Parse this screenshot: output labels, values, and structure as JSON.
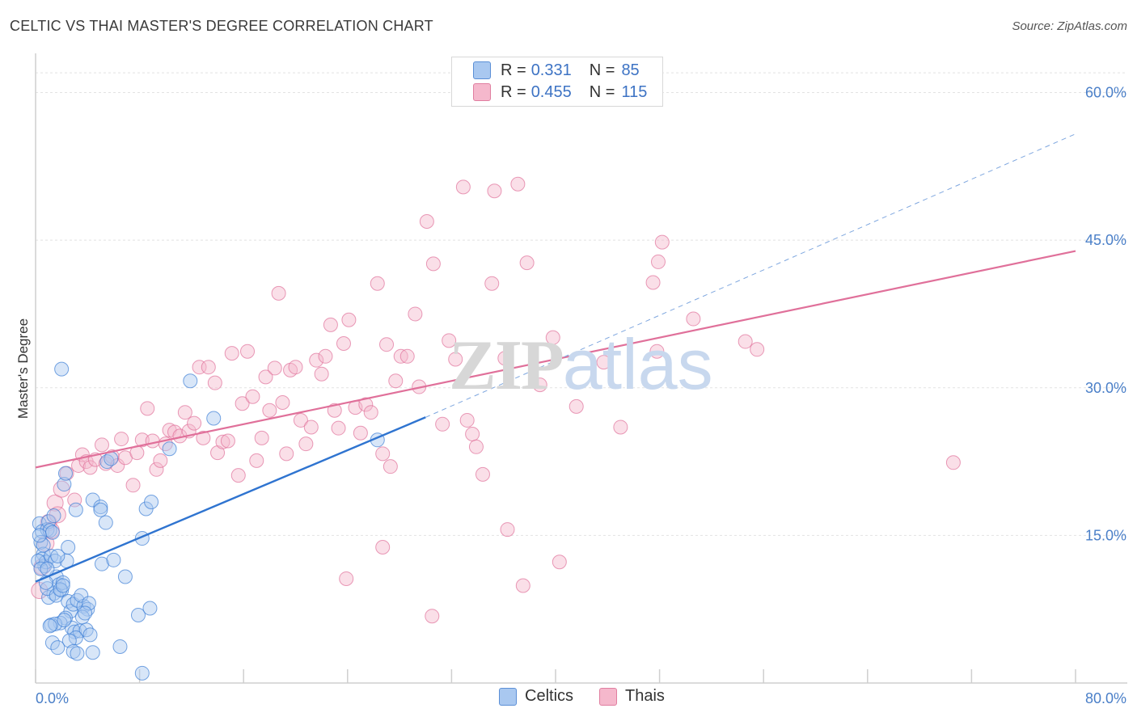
{
  "title": "CELTIC VS THAI MASTER'S DEGREE CORRELATION CHART",
  "source": "Source: ZipAtlas.com",
  "watermark": {
    "part1": "ZIP",
    "part2": "atlas"
  },
  "legend_top": {
    "rows": [
      {
        "r_label": "R =",
        "r_value": "0.331",
        "n_label": "N =",
        "n_value": "85",
        "color": "#a9c8f0"
      },
      {
        "r_label": "R =",
        "r_value": "0.455",
        "n_label": "N =",
        "n_value": "115",
        "color": "#f5b8cc"
      }
    ]
  },
  "legend_bottom": [
    {
      "label": "Celtics",
      "color": "#a9c8f0"
    },
    {
      "label": "Thais",
      "color": "#f5b8cc"
    }
  ],
  "chart_data": {
    "type": "scatter",
    "title": "CELTIC VS THAI MASTER'S DEGREE CORRELATION CHART",
    "xlabel": "",
    "ylabel": "Master's Degree",
    "xlim": [
      0,
      80
    ],
    "ylim": [
      0,
      63
    ],
    "x_tick_labels": [
      "0.0%",
      "80.0%"
    ],
    "y_ticks": [
      15,
      30,
      45,
      60
    ],
    "y_tick_labels": [
      "15.0%",
      "30.0%",
      "45.0%",
      "60.0%"
    ],
    "grid": true,
    "legend": "top-center",
    "series": [
      {
        "name": "Celtics",
        "color": "#3d7fd6",
        "fill": "#a9c8f0",
        "r": 0.331,
        "n": 85,
        "trend": {
          "x": [
            0,
            30
          ],
          "y": [
            10.3,
            27.0
          ],
          "dashed_extension": {
            "x": [
              30,
              80
            ],
            "y": [
              27.0,
              55.8
            ]
          }
        },
        "points": [
          [
            0.3,
            16.2
          ],
          [
            0.5,
            15.4
          ],
          [
            0.4,
            14.3
          ],
          [
            0.6,
            13.1
          ],
          [
            0.5,
            12.6
          ],
          [
            0.7,
            11.9
          ],
          [
            0.8,
            12.3
          ],
          [
            0.9,
            15.6
          ],
          [
            1.0,
            16.4
          ],
          [
            1.1,
            15.5
          ],
          [
            1.3,
            15.3
          ],
          [
            1.2,
            12.9
          ],
          [
            1.5,
            12.4
          ],
          [
            1.6,
            10.8
          ],
          [
            1.8,
            10.0
          ],
          [
            2.0,
            9.4
          ],
          [
            2.1,
            10.2
          ],
          [
            1.4,
            9.1
          ],
          [
            1.0,
            8.7
          ],
          [
            0.9,
            9.6
          ],
          [
            1.6,
            8.9
          ],
          [
            2.5,
            8.3
          ],
          [
            2.7,
            7.3
          ],
          [
            2.9,
            8.0
          ],
          [
            3.2,
            8.4
          ],
          [
            3.7,
            7.8
          ],
          [
            4.0,
            7.5
          ],
          [
            2.3,
            6.6
          ],
          [
            1.9,
            6.1
          ],
          [
            1.2,
            5.9
          ],
          [
            1.5,
            6.0
          ],
          [
            2.8,
            5.6
          ],
          [
            3.0,
            5.2
          ],
          [
            3.4,
            5.3
          ],
          [
            3.9,
            5.4
          ],
          [
            4.2,
            4.9
          ],
          [
            3.1,
            4.6
          ],
          [
            2.6,
            4.3
          ],
          [
            1.3,
            4.1
          ],
          [
            1.7,
            3.6
          ],
          [
            2.9,
            3.2
          ],
          [
            3.2,
            3.0
          ],
          [
            4.4,
            3.1
          ],
          [
            6.5,
            3.7
          ],
          [
            8.2,
            1.0
          ],
          [
            1.4,
            17.0
          ],
          [
            2.2,
            20.2
          ],
          [
            2.3,
            21.3
          ],
          [
            3.1,
            17.6
          ],
          [
            4.4,
            18.6
          ],
          [
            5.0,
            17.9
          ],
          [
            5.4,
            16.3
          ],
          [
            5.0,
            17.6
          ],
          [
            5.5,
            22.5
          ],
          [
            5.8,
            22.8
          ],
          [
            5.1,
            12.1
          ],
          [
            6.0,
            12.5
          ],
          [
            6.9,
            10.8
          ],
          [
            7.9,
            6.9
          ],
          [
            8.2,
            14.7
          ],
          [
            8.5,
            17.7
          ],
          [
            8.9,
            18.4
          ],
          [
            8.8,
            7.6
          ],
          [
            10.3,
            23.8
          ],
          [
            11.9,
            30.7
          ],
          [
            13.7,
            26.9
          ],
          [
            26.3,
            24.7
          ],
          [
            2.0,
            31.9
          ],
          [
            0.2,
            12.4
          ],
          [
            0.4,
            11.6
          ],
          [
            2.4,
            12.4
          ],
          [
            2.5,
            13.8
          ],
          [
            0.8,
            10.2
          ],
          [
            1.9,
            9.5
          ],
          [
            3.5,
            8.9
          ],
          [
            4.1,
            8.1
          ],
          [
            2.2,
            6.4
          ],
          [
            1.1,
            5.8
          ],
          [
            3.6,
            6.7
          ],
          [
            0.6,
            14.0
          ],
          [
            0.3,
            15.0
          ],
          [
            1.7,
            12.9
          ],
          [
            2.1,
            9.9
          ],
          [
            3.8,
            7.1
          ],
          [
            0.9,
            11.6
          ]
        ]
      },
      {
        "name": "Thais",
        "color": "#e0709a",
        "fill": "#f5b8cc",
        "r": 0.455,
        "n": 115,
        "trend": {
          "x": [
            0,
            80
          ],
          "y": [
            21.9,
            43.9
          ]
        },
        "points": [
          [
            0.3,
            9.4
          ],
          [
            0.5,
            11.8
          ],
          [
            0.8,
            14.2
          ],
          [
            1.0,
            16.3
          ],
          [
            1.2,
            15.5
          ],
          [
            1.5,
            18.3
          ],
          [
            1.7,
            17.1
          ],
          [
            2.0,
            19.7
          ],
          [
            2.4,
            21.3
          ],
          [
            3.0,
            18.6
          ],
          [
            3.3,
            22.1
          ],
          [
            3.6,
            23.2
          ],
          [
            3.9,
            22.5
          ],
          [
            4.2,
            21.9
          ],
          [
            4.6,
            22.7
          ],
          [
            5.1,
            24.2
          ],
          [
            5.4,
            22.3
          ],
          [
            5.9,
            23.0
          ],
          [
            6.3,
            22.1
          ],
          [
            6.6,
            24.8
          ],
          [
            6.9,
            22.9
          ],
          [
            7.5,
            20.1
          ],
          [
            7.8,
            23.4
          ],
          [
            8.2,
            24.7
          ],
          [
            8.6,
            27.9
          ],
          [
            9.0,
            24.6
          ],
          [
            9.3,
            21.7
          ],
          [
            9.6,
            22.6
          ],
          [
            10.0,
            24.3
          ],
          [
            10.3,
            25.7
          ],
          [
            10.7,
            25.5
          ],
          [
            11.1,
            25.1
          ],
          [
            11.5,
            27.5
          ],
          [
            11.8,
            25.6
          ],
          [
            12.2,
            26.4
          ],
          [
            12.6,
            32.1
          ],
          [
            12.9,
            24.9
          ],
          [
            13.3,
            32.1
          ],
          [
            13.8,
            30.5
          ],
          [
            14.0,
            23.4
          ],
          [
            14.4,
            24.5
          ],
          [
            14.8,
            24.6
          ],
          [
            15.1,
            33.5
          ],
          [
            15.6,
            21.1
          ],
          [
            15.9,
            28.4
          ],
          [
            16.3,
            33.7
          ],
          [
            16.7,
            29.1
          ],
          [
            17.0,
            22.6
          ],
          [
            17.4,
            24.9
          ],
          [
            17.7,
            31.1
          ],
          [
            18.0,
            27.7
          ],
          [
            18.4,
            32.0
          ],
          [
            18.7,
            39.6
          ],
          [
            19.0,
            28.5
          ],
          [
            19.3,
            23.3
          ],
          [
            19.6,
            31.8
          ],
          [
            20.0,
            32.1
          ],
          [
            20.4,
            26.7
          ],
          [
            20.8,
            24.3
          ],
          [
            21.2,
            26.0
          ],
          [
            21.6,
            32.8
          ],
          [
            22.0,
            31.4
          ],
          [
            22.3,
            33.2
          ],
          [
            22.7,
            36.4
          ],
          [
            23.0,
            27.7
          ],
          [
            23.3,
            25.9
          ],
          [
            23.7,
            34.5
          ],
          [
            24.1,
            36.9
          ],
          [
            24.6,
            28.0
          ],
          [
            25.0,
            25.4
          ],
          [
            25.4,
            28.3
          ],
          [
            25.8,
            27.5
          ],
          [
            26.3,
            40.6
          ],
          [
            26.7,
            23.3
          ],
          [
            27.0,
            34.4
          ],
          [
            27.3,
            22.0
          ],
          [
            27.7,
            30.7
          ],
          [
            28.1,
            33.2
          ],
          [
            28.6,
            33.2
          ],
          [
            29.2,
            37.5
          ],
          [
            29.5,
            30.1
          ],
          [
            30.1,
            46.9
          ],
          [
            30.6,
            42.6
          ],
          [
            31.3,
            26.3
          ],
          [
            31.8,
            34.8
          ],
          [
            32.3,
            32.9
          ],
          [
            32.9,
            50.4
          ],
          [
            33.2,
            26.7
          ],
          [
            33.6,
            25.3
          ],
          [
            33.9,
            24.0
          ],
          [
            34.4,
            21.2
          ],
          [
            35.1,
            40.6
          ],
          [
            36.1,
            33.0
          ],
          [
            36.3,
            15.6
          ],
          [
            37.1,
            50.7
          ],
          [
            37.5,
            9.9
          ],
          [
            37.8,
            42.7
          ],
          [
            38.8,
            30.3
          ],
          [
            39.8,
            35.1
          ],
          [
            40.3,
            12.3
          ],
          [
            41.6,
            28.1
          ],
          [
            43.7,
            32.6
          ],
          [
            45.0,
            26.0
          ],
          [
            47.5,
            40.7
          ],
          [
            47.8,
            33.7
          ],
          [
            47.9,
            42.8
          ],
          [
            48.2,
            44.8
          ],
          [
            50.6,
            37.0
          ],
          [
            54.6,
            34.7
          ],
          [
            55.5,
            33.9
          ],
          [
            70.6,
            22.4
          ],
          [
            26.7,
            13.8
          ],
          [
            23.9,
            10.6
          ],
          [
            30.5,
            6.8
          ],
          [
            35.3,
            50.0
          ]
        ]
      }
    ]
  }
}
